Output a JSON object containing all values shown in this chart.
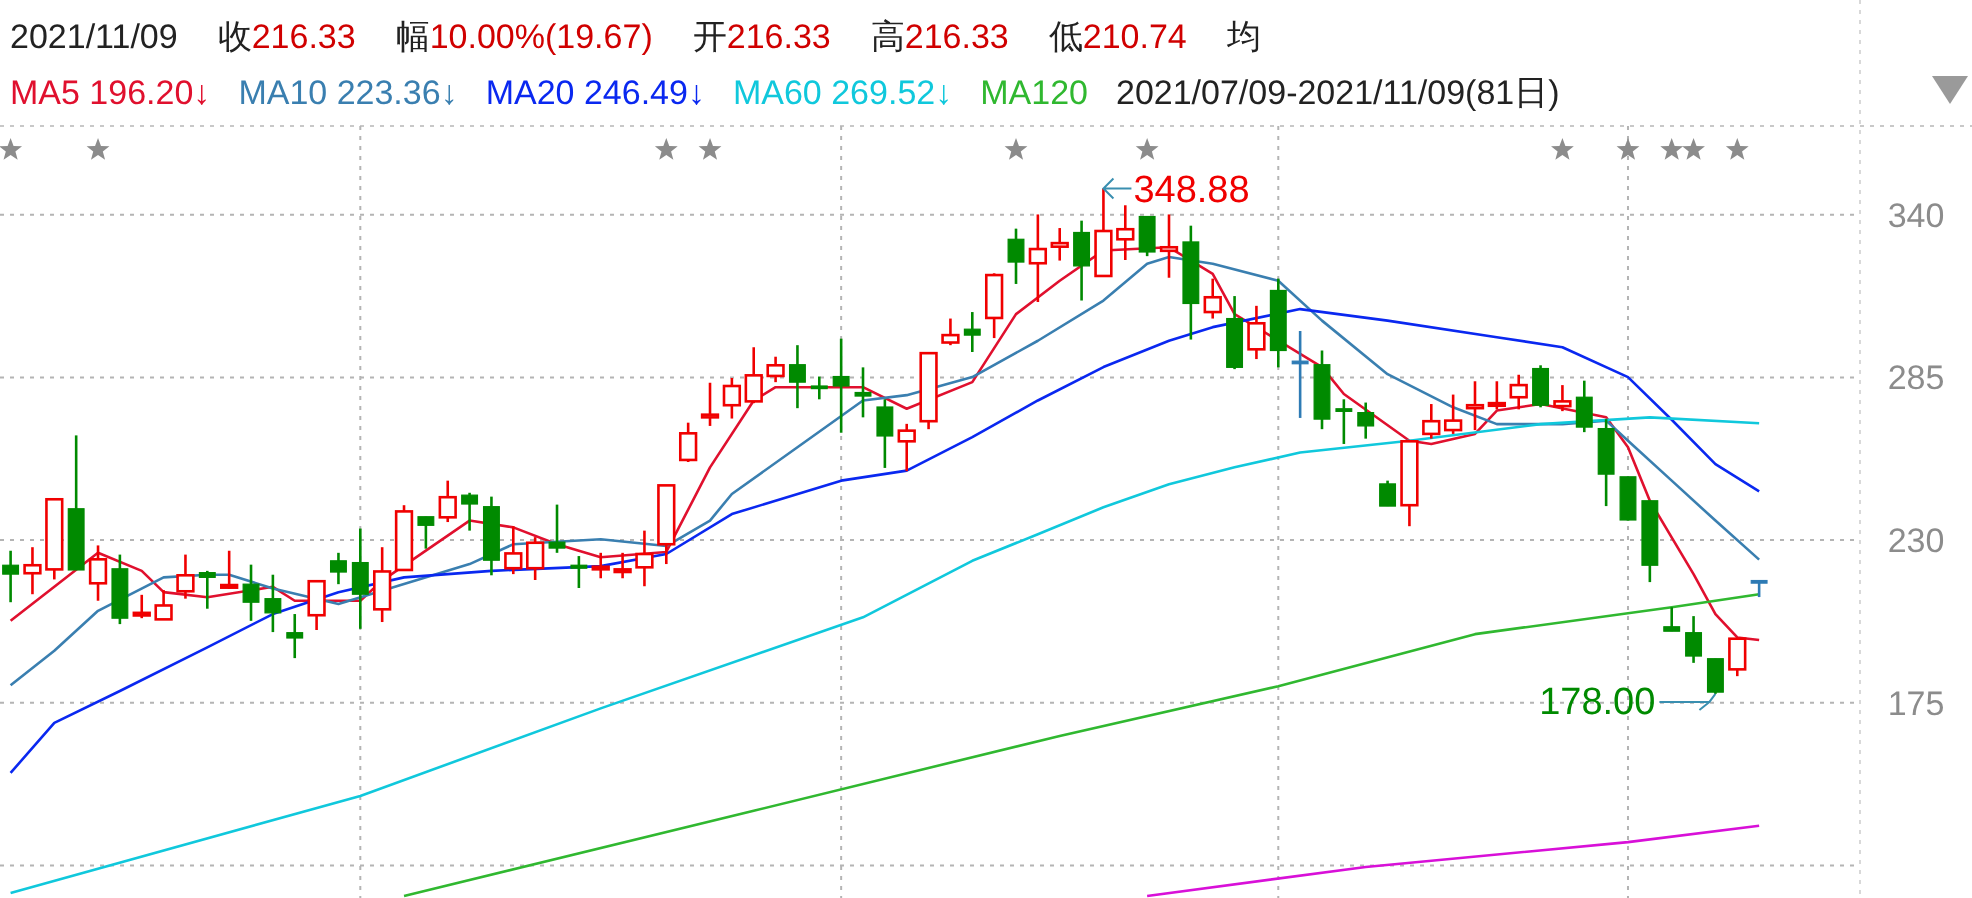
{
  "chart_data": {
    "type": "candlestick",
    "title": "2021/11/09",
    "subtitle": "2021/07/09-2021/11/09(81日)",
    "categories": [
      null,
      null,
      null,
      null,
      null,
      null,
      null,
      null,
      null,
      null,
      null,
      null,
      null,
      null,
      null,
      null,
      null,
      null,
      null,
      null,
      null,
      null,
      null,
      null,
      null,
      null,
      null,
      null,
      null,
      null,
      null,
      null,
      null,
      null,
      null,
      null,
      null,
      null,
      null,
      null,
      null,
      null,
      null,
      null,
      null,
      null,
      null,
      null,
      null,
      null,
      null,
      null,
      null,
      null,
      null,
      null,
      null,
      null,
      null,
      null,
      null,
      null,
      null,
      null,
      null,
      null,
      null,
      null,
      null,
      null,
      null,
      null,
      null,
      null,
      null,
      null,
      null,
      null,
      null,
      null,
      null
    ],
    "ohlc": [
      [
        221.5,
        226.4,
        209.0,
        218.5
      ],
      [
        218.8,
        227.6,
        211.7,
        221.5
      ],
      [
        220.1,
        243.8,
        216.7,
        243.8
      ],
      [
        240.6,
        265.4,
        219.9,
        219.9
      ],
      [
        215.4,
        228.2,
        209.5,
        223.5
      ],
      [
        220.3,
        225.1,
        201.6,
        203.6
      ],
      [
        204.6,
        211.5,
        203.6,
        205.4
      ],
      [
        203.2,
        213.1,
        203.2,
        207.9
      ],
      [
        212.7,
        225.1,
        210.2,
        218.1
      ],
      [
        219.0,
        219.6,
        206.8,
        217.4
      ],
      [
        214.0,
        226.4,
        213.5,
        214.8
      ],
      [
        215.1,
        221.7,
        202.7,
        209.0
      ],
      [
        210.2,
        218.3,
        198.9,
        205.4
      ],
      [
        198.7,
        205.0,
        190.1,
        196.9
      ],
      [
        204.6,
        216.1,
        199.6,
        216.1
      ],
      [
        223.0,
        225.7,
        215.1,
        219.2
      ],
      [
        222.4,
        233.9,
        200.0,
        211.7
      ],
      [
        206.6,
        227.6,
        202.3,
        219.4
      ],
      [
        219.9,
        241.8,
        219.9,
        239.7
      ],
      [
        237.9,
        237.9,
        227.1,
        235.0
      ],
      [
        237.7,
        250.1,
        236.1,
        244.5
      ],
      [
        245.2,
        246.0,
        233.2,
        242.2
      ],
      [
        241.3,
        244.7,
        218.1,
        223.2
      ],
      [
        220.5,
        234.7,
        218.5,
        225.5
      ],
      [
        220.5,
        231.0,
        216.5,
        229.1
      ],
      [
        229.3,
        242.0,
        225.7,
        227.3
      ],
      [
        221.5,
        224.6,
        213.8,
        220.5
      ],
      [
        220.5,
        225.7,
        217.1,
        221.0
      ],
      [
        219.6,
        225.7,
        217.1,
        220.1
      ],
      [
        220.8,
        233.2,
        214.4,
        225.3
      ],
      [
        228.6,
        248.5,
        221.9,
        248.5
      ],
      [
        257.1,
        269.7,
        256.4,
        266.1
      ],
      [
        271.5,
        283.2,
        268.6,
        272.4
      ],
      [
        275.6,
        284.8,
        271.1,
        282.1
      ],
      [
        276.9,
        295.2,
        276.3,
        285.7
      ],
      [
        285.5,
        292.0,
        283.4,
        289.1
      ],
      [
        289.3,
        295.9,
        274.6,
        283.4
      ],
      [
        282.1,
        285.3,
        277.6,
        281.4
      ],
      [
        285.3,
        298.1,
        266.3,
        282.1
      ],
      [
        279.9,
        288.4,
        271.5,
        278.7
      ],
      [
        275.0,
        277.6,
        254.4,
        265.2
      ],
      [
        263.4,
        269.3,
        253.3,
        267.0
      ],
      [
        270.2,
        293.2,
        267.5,
        293.2
      ],
      [
        296.8,
        304.9,
        295.9,
        299.3
      ],
      [
        301.3,
        307.1,
        293.6,
        299.3
      ],
      [
        305.1,
        320.2,
        298.3,
        319.6
      ],
      [
        331.7,
        335.3,
        316.6,
        324.0
      ],
      [
        323.6,
        340.1,
        310.5,
        328.4
      ],
      [
        329.2,
        335.5,
        324.5,
        330.4
      ],
      [
        334.0,
        338.0,
        311.0,
        322.7
      ],
      [
        319.3,
        348.88,
        319.3,
        334.5
      ],
      [
        331.7,
        343.2,
        324.7,
        335.1
      ],
      [
        339.4,
        339.4,
        326.0,
        327.4
      ],
      [
        327.8,
        340.1,
        318.7,
        329.0
      ],
      [
        330.8,
        336.3,
        297.8,
        310.0
      ],
      [
        307.1,
        318.4,
        304.9,
        312.1
      ],
      [
        304.9,
        312.5,
        287.8,
        288.4
      ],
      [
        294.5,
        309.2,
        291.2,
        303.3
      ],
      [
        314.4,
        318.4,
        288.4,
        294.1
      ],
      [
        290.5,
        300.7,
        271.3,
        290.5
      ],
      [
        289.3,
        294.1,
        267.5,
        270.9
      ],
      [
        274.4,
        277.6,
        262.5,
        273.8
      ],
      [
        273.1,
        276.5,
        264.3,
        268.6
      ],
      [
        249.0,
        250.1,
        241.5,
        241.5
      ],
      [
        241.8,
        263.4,
        234.7,
        263.4
      ],
      [
        265.9,
        276.0,
        264.3,
        270.2
      ],
      [
        267.2,
        279.2,
        265.9,
        270.4
      ],
      [
        274.6,
        283.7,
        267.2,
        275.6
      ],
      [
        275.6,
        283.7,
        274.2,
        276.3
      ],
      [
        278.3,
        285.9,
        274.2,
        282.4
      ],
      [
        288.0,
        289.1,
        274.9,
        275.6
      ],
      [
        275.3,
        282.4,
        273.6,
        276.9
      ],
      [
        278.3,
        283.9,
        266.5,
        268.2
      ],
      [
        267.7,
        270.9,
        241.5,
        252.3
      ],
      [
        251.4,
        251.4,
        236.6,
        236.8
      ],
      [
        243.3,
        243.3,
        215.8,
        221.5
      ],
      [
        200.7,
        207.3,
        199.2,
        199.2
      ],
      [
        198.7,
        204.3,
        188.5,
        190.8
      ],
      [
        189.9,
        189.9,
        178.0,
        178.6
      ],
      [
        186.3,
        196.66,
        184.0,
        196.66
      ],
      [
        216.33,
        216.33,
        210.74,
        216.33
      ]
    ],
    "colors": [
      "#008a00",
      "#f00000",
      "#f00000",
      "#008a00",
      "#f00000",
      "#008a00",
      "#f00000",
      "#f00000",
      "#f00000",
      "#008a00",
      "#f00000",
      "#008a00",
      "#008a00",
      "#008a00",
      "#f00000",
      "#008a00",
      "#008a00",
      "#f00000",
      "#f00000",
      "#008a00",
      "#f00000",
      "#008a00",
      "#008a00",
      "#f00000",
      "#f00000",
      "#008a00",
      "#008a00",
      "#f00000",
      "#f00000",
      "#f00000",
      "#f00000",
      "#f00000",
      "#f00000",
      "#f00000",
      "#f00000",
      "#f00000",
      "#008a00",
      "#008a00",
      "#008a00",
      "#008a00",
      "#008a00",
      "#f00000",
      "#f00000",
      "#f00000",
      "#008a00",
      "#f00000",
      "#008a00",
      "#f00000",
      "#f00000",
      "#008a00",
      "#f00000",
      "#f00000",
      "#008a00",
      "#f00000",
      "#008a00",
      "#f00000",
      "#008a00",
      "#f00000",
      "#008a00",
      "#2e7bb5",
      "#008a00",
      "#008a00",
      "#008a00",
      "#008a00",
      "#f00000",
      "#f00000",
      "#f00000",
      "#f00000",
      "#f00000",
      "#f00000",
      "#008a00",
      "#f00000",
      "#008a00",
      "#008a00",
      "#008a00",
      "#008a00",
      "#008a00",
      "#008a00",
      "#008a00",
      "#f00000",
      "#2e7bb5"
    ],
    "series": [
      {
        "name": "MA5 196.20↓",
        "type": "line",
        "color": "#e0102e",
        "values": [
          202.7,
          null,
          null,
          null,
          225.7,
          null,
          219.6,
          212.4,
          null,
          210.7,
          null,
          null,
          214.2,
          209.5,
          null,
          null,
          209.5,
          216.3,
          null,
          null,
          null,
          236.6,
          null,
          234.3,
          null,
          228.6,
          null,
          224.2,
          null,
          null,
          226.0,
          null,
          254.6,
          null,
          277.2,
          281.7,
          null,
          null,
          null,
          281.7,
          null,
          274.4,
          null,
          null,
          283.4,
          null,
          306.4,
          null,
          317.7,
          null,
          327.9,
          null,
          null,
          329.0,
          null,
          320.0,
          306.4,
          null,
          null,
          null,
          288.5,
          279.4,
          null,
          null,
          263.6,
          262.5,
          null,
          265.9,
          273.8,
          null,
          276.0,
          null,
          null,
          271.5,
          261.4,
          243.3,
          null,
          218.5,
          205.0,
          197.1,
          196.2
        ]
      },
      {
        "name": "MA10 223.36↓",
        "type": "line",
        "color": "#3a7fb0",
        "values": [
          180.9,
          null,
          192.6,
          null,
          206.1,
          null,
          null,
          217.4,
          null,
          218.3,
          218.3,
          null,
          213.6,
          null,
          null,
          208.4,
          null,
          null,
          null,
          null,
          null,
          221.9,
          null,
          228.6,
          null,
          null,
          null,
          230.3,
          null,
          null,
          228.0,
          null,
          236.6,
          245.6,
          null,
          null,
          261.4,
          null,
          null,
          277.2,
          null,
          279.0,
          null,
          null,
          285.1,
          null,
          null,
          297.4,
          null,
          null,
          311.0,
          null,
          323.4,
          325.7,
          null,
          323.4,
          null,
          null,
          317.7,
          null,
          304.2,
          null,
          null,
          286.1,
          null,
          null,
          274.9,
          null,
          269.2,
          null,
          null,
          269.2,
          null,
          270.4,
          263.6,
          null,
          250.1,
          null,
          236.6,
          null,
          223.4
        ]
      },
      {
        "name": "MA20 246.49↓",
        "type": "line",
        "color": "#0a28f0",
        "values": [
          151.3,
          null,
          168.2,
          null,
          null,
          179.0,
          null,
          null,
          null,
          193.7,
          null,
          null,
          205.0,
          null,
          null,
          212.4,
          null,
          null,
          217.4,
          null,
          null,
          null,
          219.6,
          null,
          null,
          null,
          null,
          221.2,
          null,
          null,
          225.3,
          null,
          null,
          238.8,
          null,
          null,
          null,
          null,
          250.1,
          null,
          null,
          253.5,
          null,
          null,
          264.8,
          null,
          null,
          277.2,
          null,
          null,
          288.5,
          null,
          null,
          297.4,
          null,
          302.0,
          null,
          null,
          null,
          308.1,
          null,
          null,
          null,
          304.2,
          null,
          null,
          null,
          null,
          298.6,
          null,
          null,
          295.2,
          null,
          null,
          285.1,
          null,
          270.7,
          null,
          255.7,
          null,
          246.5
        ]
      },
      {
        "name": "MA60 269.52↓",
        "type": "line",
        "color": "#10c8dc",
        "values": [
          110.7,
          null,
          null,
          null,
          null,
          null,
          null,
          null,
          null,
          null,
          null,
          null,
          null,
          null,
          null,
          null,
          143.5,
          null,
          null,
          null,
          null,
          null,
          null,
          null,
          null,
          null,
          null,
          173.1,
          null,
          null,
          null,
          null,
          null,
          null,
          null,
          null,
          null,
          null,
          null,
          203.9,
          null,
          null,
          null,
          null,
          223.0,
          null,
          null,
          232.0,
          null,
          null,
          241.1,
          null,
          null,
          248.9,
          null,
          null,
          254.6,
          null,
          null,
          259.6,
          null,
          null,
          null,
          null,
          263.6,
          null,
          null,
          null,
          null,
          null,
          269.2,
          null,
          null,
          null,
          null,
          271.5,
          null,
          null,
          null,
          null,
          269.5
        ]
      },
      {
        "name": "MA120",
        "type": "line",
        "color": "#30b830",
        "values": [
          null,
          null,
          null,
          null,
          null,
          null,
          null,
          null,
          null,
          null,
          null,
          null,
          null,
          null,
          null,
          null,
          null,
          null,
          109.7,
          null,
          null,
          null,
          null,
          null,
          null,
          null,
          null,
          null,
          null,
          null,
          null,
          null,
          null,
          null,
          138.5,
          null,
          null,
          null,
          null,
          null,
          null,
          null,
          null,
          null,
          null,
          null,
          null,
          null,
          163.8,
          null,
          null,
          null,
          null,
          null,
          null,
          null,
          null,
          null,
          180.6,
          null,
          null,
          null,
          null,
          null,
          null,
          null,
          null,
          198.2,
          null,
          null,
          null,
          null,
          null,
          null,
          null,
          null,
          207.3,
          null,
          null,
          null,
          211.7
        ]
      },
      {
        "type": "line",
        "color": "#d810d8",
        "values": [
          null,
          null,
          null,
          null,
          null,
          null,
          null,
          null,
          null,
          null,
          null,
          null,
          null,
          null,
          null,
          null,
          null,
          null,
          null,
          null,
          null,
          null,
          null,
          null,
          null,
          null,
          null,
          null,
          null,
          null,
          null,
          null,
          null,
          null,
          null,
          null,
          null,
          null,
          null,
          null,
          null,
          null,
          null,
          null,
          null,
          null,
          null,
          null,
          null,
          null,
          null,
          null,
          109.7,
          null,
          null,
          null,
          null,
          null,
          null,
          null,
          null,
          null,
          119.5,
          null,
          null,
          null,
          null,
          null,
          null,
          null,
          null,
          null,
          null,
          null,
          127.9,
          null,
          null,
          null,
          null,
          null,
          133.4
        ]
      }
    ],
    "ylim": [
      109,
      370
    ],
    "yticks": [
      340,
      285,
      230,
      175,
      {
        "value": 120,
        "label": null
      }
    ],
    "grid": true,
    "legend": "top",
    "annotations": [
      "收216.33",
      "幅10.00%(19.67)",
      "开216.33",
      "高216.33",
      "低210.74",
      "均",
      "348.88",
      "178.00"
    ]
  }
}
